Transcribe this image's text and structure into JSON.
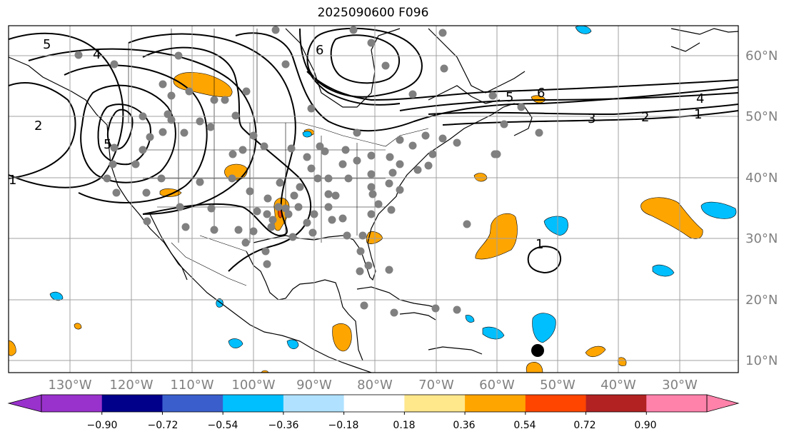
{
  "title": "2025090600 F096",
  "map": {
    "projection": "PlateCarree",
    "lon_range": [
      -140,
      -20
    ],
    "lat_range": [
      8,
      65
    ],
    "grid": true,
    "lat_labels": [
      "60°N",
      "50°N",
      "40°N",
      "30°N",
      "20°N",
      "10°N"
    ],
    "lon_labels": [
      "130°W",
      "120°W",
      "110°W",
      "100°W",
      "90°W",
      "80°W",
      "70°W",
      "60°W",
      "50°W",
      "40°W",
      "30°W"
    ],
    "contour_labels": [
      "5",
      "4",
      "6",
      "2",
      "5",
      "1",
      "4",
      "5",
      "6",
      "3",
      "2",
      "1",
      "1"
    ],
    "marker_colors": {
      "station": "#808080",
      "storm": "#000000"
    }
  },
  "colorbar": {
    "colors": [
      "#9932cc",
      "#00008b",
      "#3a5fcd",
      "#00bfff",
      "#b0e2ff",
      "#ffffff",
      "#ffe78c",
      "#ffa500",
      "#ff4500",
      "#b22222",
      "#ff82ab"
    ],
    "ticks": [
      "−0.90",
      "−0.72",
      "−0.54",
      "−0.36",
      "−0.18",
      "0.18",
      "0.36",
      "0.54",
      "0.72",
      "0.90"
    ],
    "extend": "both"
  }
}
